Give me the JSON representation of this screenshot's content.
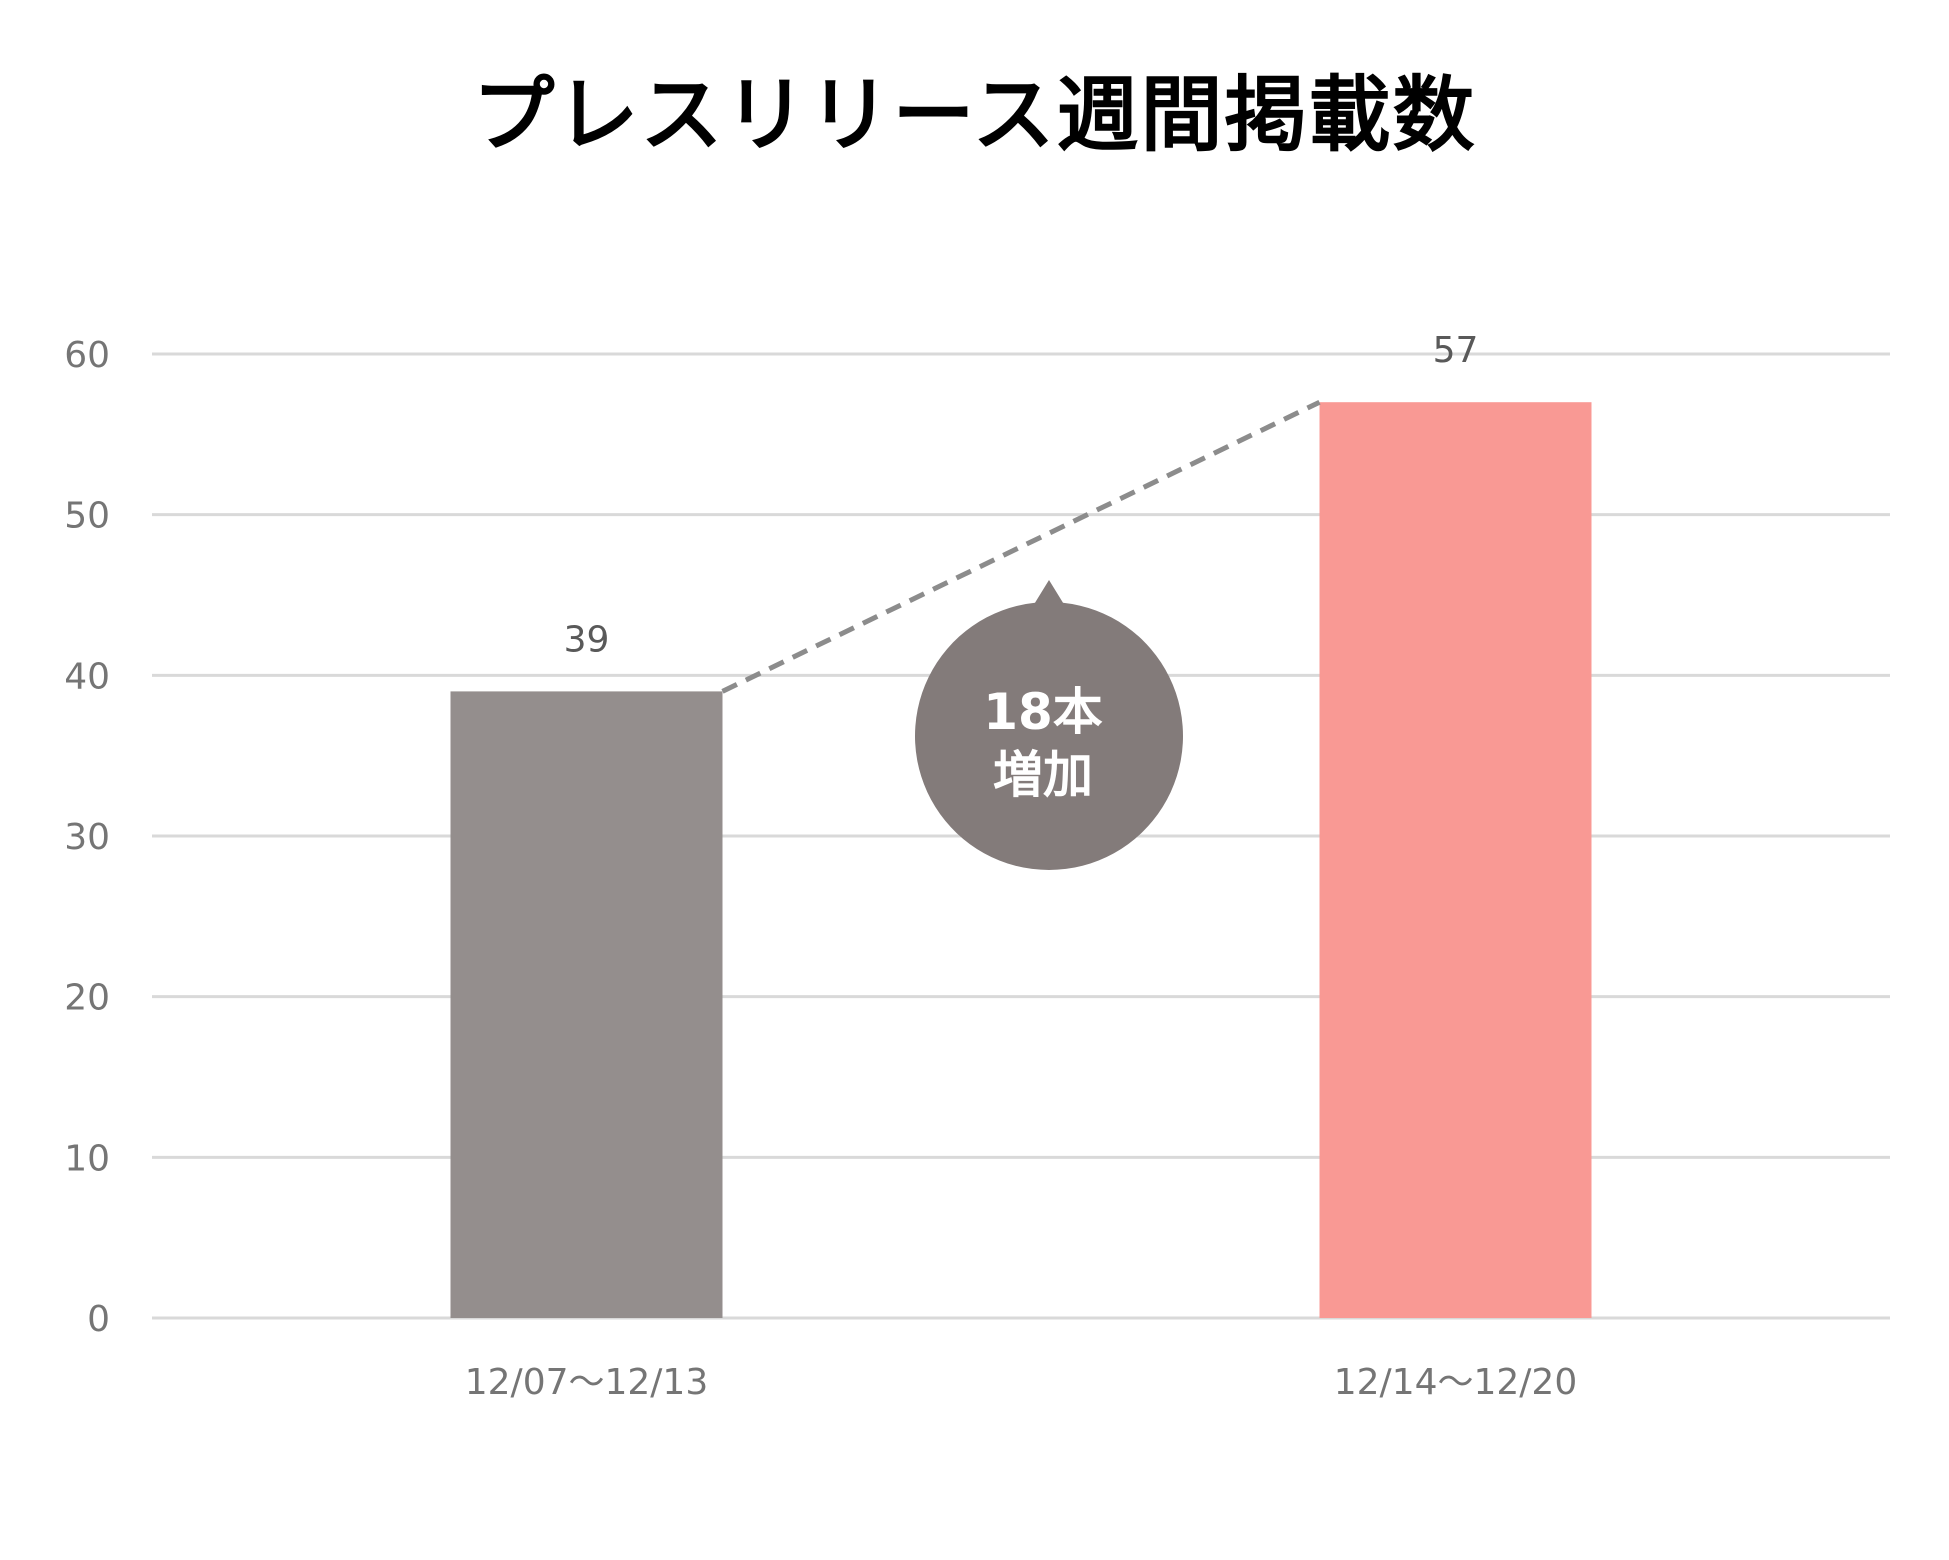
{
  "chart_data": {
    "type": "bar",
    "title": "プレスリリース週間掲載数",
    "xlabel": "",
    "ylabel": "",
    "categories": [
      "12/07〜12/13",
      "12/14〜12/20"
    ],
    "values": [
      39,
      57
    ],
    "ylim": [
      0,
      60
    ],
    "yticks": [
      0,
      10,
      20,
      30,
      40,
      50,
      60
    ],
    "grid": true,
    "bar_colors": [
      "#948e8d",
      "#f99994"
    ],
    "data_labels": [
      "39",
      "57"
    ],
    "callout": {
      "line1": "18本",
      "line2": "増加",
      "color": "#837b7a"
    }
  }
}
